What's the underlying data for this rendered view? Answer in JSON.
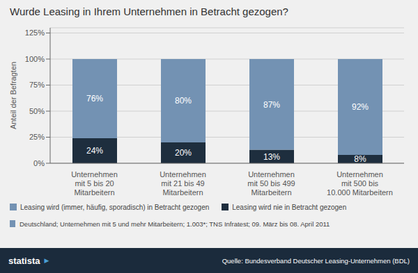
{
  "chart_data": {
    "type": "bar",
    "stacked": true,
    "title": "Wurde Leasing in Ihrem Unternehmen in Betracht gezogen?",
    "ylabel": "Anteil der Befragten",
    "categories": [
      "Unternehmen\nmit 5 bis 20\nMitarbeitern",
      "Unternehmen\nmit 21 bis 49\nMitarbeitern",
      "Unternehmen\nmit 50 bis 499\nMitarbeitern",
      "Unternehmen\nmit 500 bis\n10.000 Mitarbeitern"
    ],
    "series": [
      {
        "name": "Leasing wird nie in Betracht gezogen",
        "color": "#1e2e3e",
        "values": [
          24,
          20,
          13,
          8
        ],
        "value_labels": [
          "24%",
          "20%",
          "13%",
          "8%"
        ]
      },
      {
        "name": "Leasing wird (immer, häufig, sporadisch) in Betracht gezogen",
        "color": "#7392b3",
        "values": [
          76,
          80,
          87,
          92
        ],
        "value_labels": [
          "76%",
          "80%",
          "87%",
          "92%"
        ]
      }
    ],
    "ylim": [
      0,
      130
    ],
    "yticks": [
      {
        "value": 0,
        "label": "0%"
      },
      {
        "value": 25,
        "label": "25%"
      },
      {
        "value": 50,
        "label": "50%"
      },
      {
        "value": 75,
        "label": "75%"
      },
      {
        "value": 100,
        "label": "100%"
      },
      {
        "value": 125,
        "label": "125%"
      }
    ],
    "grid": true,
    "data_labels": true,
    "legend": "bottom",
    "annotations": [
      "Deutschland; Unternehmen mit 5 und mehr Mitarbeitern; 1.003*; TNS Infratest; 09. März bis 08. April 2011",
      "statista",
      "▶",
      "Quelle: Bundesverband Deutscher Leasing-Unternehmen (BDL)"
    ]
  }
}
